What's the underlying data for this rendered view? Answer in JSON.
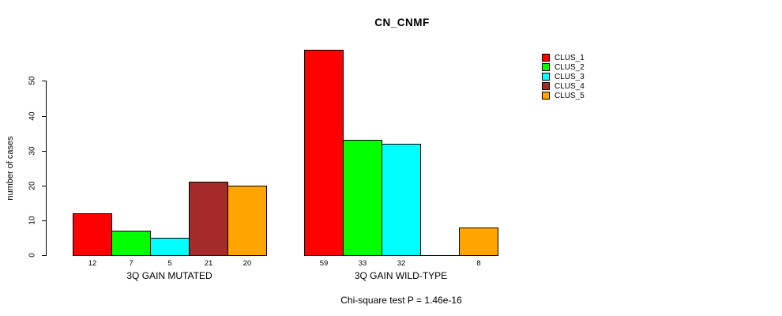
{
  "title": "CN_CNMF",
  "footer": "Chi-square test P = 1.46e-16",
  "colors": {
    "clus_1": "#FF0000",
    "clus_2": "#00FF00",
    "clus_3": "#00FFFF",
    "clus_4": "#A52A2A",
    "clus_5": "#FFA500",
    "axis": "#000000",
    "background": "#FFFFFF"
  },
  "chart_data": {
    "type": "bar",
    "title": "CN_CNMF",
    "xlabel": "",
    "ylabel": "number of cases",
    "ylim": [
      0,
      50
    ],
    "yticks": [
      0,
      10,
      20,
      30,
      40,
      50
    ],
    "grid": false,
    "legend_position": "top-right",
    "categories": [
      "3Q GAIN MUTATED",
      "3Q GAIN WILD-TYPE"
    ],
    "series": [
      {
        "name": "CLUS_1",
        "color": "#FF0000",
        "values": [
          12,
          59
        ]
      },
      {
        "name": "CLUS_2",
        "color": "#00FF00",
        "values": [
          7,
          33
        ]
      },
      {
        "name": "CLUS_3",
        "color": "#00FFFF",
        "values": [
          5,
          32
        ]
      },
      {
        "name": "CLUS_4",
        "color": "#A52A2A",
        "values": [
          21,
          0
        ]
      },
      {
        "name": "CLUS_5",
        "color": "#FFA500",
        "values": [
          20,
          8
        ]
      }
    ],
    "bar_labels": [
      [
        "12",
        "7",
        "5",
        "21",
        "20"
      ],
      [
        "59",
        "33",
        "32",
        "",
        "8"
      ]
    ],
    "annotation": "Chi-square test P = 1.46e-16"
  }
}
